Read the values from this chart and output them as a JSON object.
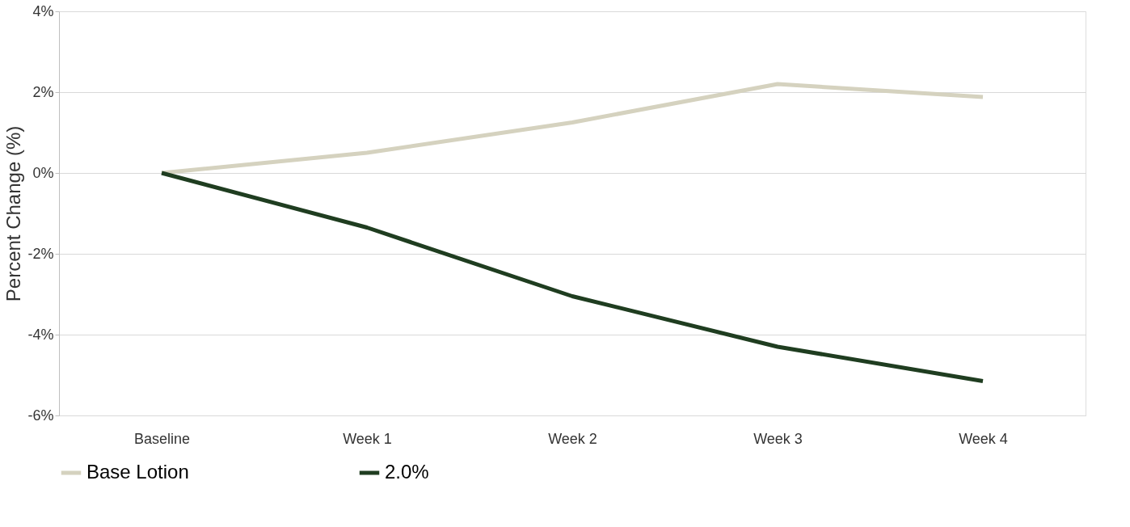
{
  "chart_data": {
    "type": "line",
    "ylabel": "Percent Change (%)",
    "categories": [
      "Baseline",
      "Week 1",
      "Week 2",
      "Week 3",
      "Week 4"
    ],
    "series": [
      {
        "name": "Base Lotion",
        "color": "#d5d2bf",
        "values": [
          0,
          0.5,
          1.25,
          2.2,
          1.88
        ]
      },
      {
        "name": "2.0%",
        "color": "#1f3d20",
        "values": [
          0,
          -1.35,
          -3.05,
          -4.3,
          -5.15
        ]
      }
    ],
    "ylim": [
      -6,
      4
    ],
    "yticks": [
      {
        "value": -6,
        "label": "-6%"
      },
      {
        "value": -4,
        "label": "-4%"
      },
      {
        "value": -2,
        "label": "-2%"
      },
      {
        "value": 0,
        "label": "0%"
      },
      {
        "value": 2,
        "label": "2%"
      },
      {
        "value": 4,
        "label": "4%"
      }
    ],
    "grid": "y",
    "legend": "bottom",
    "marker": "none",
    "line_style": "solid"
  }
}
